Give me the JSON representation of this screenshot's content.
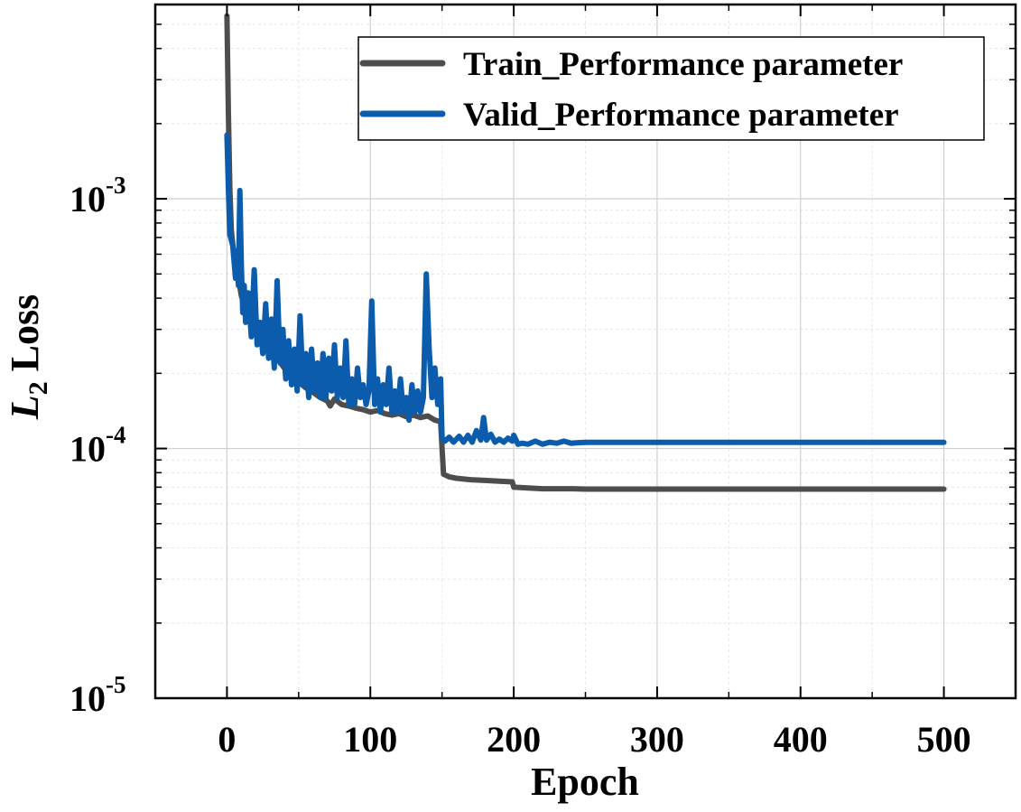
{
  "chart_data": {
    "type": "line",
    "xlabel": "Epoch",
    "ylabel_main": "L",
    "ylabel_sub": "2",
    "ylabel_rest": " Loss",
    "xlim": [
      -50,
      550
    ],
    "ylim": [
      1e-05,
      0.006
    ],
    "yscale": "log",
    "grid": true,
    "legend_position": "top-right",
    "x_ticks": [
      0,
      100,
      200,
      300,
      400,
      500
    ],
    "x_tick_labels": [
      "0",
      "100",
      "200",
      "300",
      "400",
      "500"
    ],
    "y_ticks": [
      {
        "value": 0.001,
        "base": "10",
        "exp": "-3"
      },
      {
        "value": 0.0001,
        "base": "10",
        "exp": "-4"
      },
      {
        "value": 1e-05,
        "base": "10",
        "exp": "-5"
      }
    ],
    "series": [
      {
        "name": "Train_Performance parameter",
        "color": "#4d4d4d",
        "points": [
          [
            0,
            0.0054
          ],
          [
            1,
            0.0022
          ],
          [
            2,
            0.0011
          ],
          [
            3,
            0.00075
          ],
          [
            5,
            0.00058
          ],
          [
            8,
            0.00048
          ],
          [
            10,
            0.00041
          ],
          [
            15,
            0.00034
          ],
          [
            20,
            0.0003
          ],
          [
            25,
            0.00027
          ],
          [
            30,
            0.00025
          ],
          [
            35,
            0.00023
          ],
          [
            40,
            0.00021
          ],
          [
            45,
            0.000195
          ],
          [
            50,
            0.000185
          ],
          [
            55,
            0.000175
          ],
          [
            60,
            0.000168
          ],
          [
            65,
            0.00016
          ],
          [
            70,
            0.000155
          ],
          [
            72,
            0.000148
          ],
          [
            75,
            0.000158
          ],
          [
            80,
            0.00015
          ],
          [
            85,
            0.000148
          ],
          [
            90,
            0.000145
          ],
          [
            95,
            0.000143
          ],
          [
            100,
            0.00014
          ],
          [
            105,
            0.000142
          ],
          [
            110,
            0.000138
          ],
          [
            115,
            0.000136
          ],
          [
            120,
            0.000138
          ],
          [
            125,
            0.000134
          ],
          [
            130,
            0.000136
          ],
          [
            135,
            0.000133
          ],
          [
            140,
            0.000135
          ],
          [
            145,
            0.00013
          ],
          [
            149,
            0.000128
          ],
          [
            150,
            0.0001
          ],
          [
            151,
            7.9e-05
          ],
          [
            155,
            7.7e-05
          ],
          [
            160,
            7.6e-05
          ],
          [
            170,
            7.5e-05
          ],
          [
            180,
            7.45e-05
          ],
          [
            190,
            7.4e-05
          ],
          [
            199,
            7.35e-05
          ],
          [
            200,
            7e-05
          ],
          [
            210,
            6.95e-05
          ],
          [
            220,
            6.9e-05
          ],
          [
            240,
            6.9e-05
          ],
          [
            250,
            6.88e-05
          ],
          [
            300,
            6.88e-05
          ],
          [
            400,
            6.88e-05
          ],
          [
            500,
            6.88e-05
          ]
        ]
      },
      {
        "name": "Valid_Performance parameter",
        "color": "#0b5cad",
        "points": [
          [
            0,
            0.0018
          ],
          [
            1,
            0.0011
          ],
          [
            2,
            0.00072
          ],
          [
            4,
            0.00065
          ],
          [
            6,
            0.00048
          ],
          [
            7,
            0.00062
          ],
          [
            8,
            0.00045
          ],
          [
            9,
            0.00108
          ],
          [
            10,
            0.00055
          ],
          [
            11,
            0.00035
          ],
          [
            12,
            0.00045
          ],
          [
            13,
            0.00032
          ],
          [
            15,
            0.00042
          ],
          [
            17,
            0.00028
          ],
          [
            19,
            0.00052
          ],
          [
            21,
            0.00026
          ],
          [
            23,
            0.00032
          ],
          [
            25,
            0.00024
          ],
          [
            27,
            0.00038
          ],
          [
            29,
            0.00023
          ],
          [
            31,
            0.00033
          ],
          [
            33,
            0.00021
          ],
          [
            35,
            0.00047
          ],
          [
            37,
            0.00022
          ],
          [
            39,
            0.0003
          ],
          [
            41,
            0.00019
          ],
          [
            43,
            0.00027
          ],
          [
            45,
            0.00018
          ],
          [
            47,
            0.00025
          ],
          [
            49,
            0.00017
          ],
          [
            51,
            0.00034
          ],
          [
            53,
            0.00018
          ],
          [
            55,
            0.00024
          ],
          [
            57,
            0.00016
          ],
          [
            59,
            0.00025
          ],
          [
            61,
            0.00017
          ],
          [
            63,
            0.00022
          ],
          [
            65,
            0.00016
          ],
          [
            67,
            0.00024
          ],
          [
            69,
            0.00016
          ],
          [
            71,
            0.00023
          ],
          [
            73,
            0.00017
          ],
          [
            75,
            0.00026
          ],
          [
            77,
            0.00016
          ],
          [
            79,
            0.00021
          ],
          [
            81,
            0.00016
          ],
          [
            83,
            0.00027
          ],
          [
            85,
            0.00015
          ],
          [
            87,
            0.00019
          ],
          [
            89,
            0.00015
          ],
          [
            91,
            0.00021
          ],
          [
            93,
            0.00016
          ],
          [
            95,
            0.00018
          ],
          [
            97,
            0.00015
          ],
          [
            99,
            0.00017
          ],
          [
            101,
            0.00039
          ],
          [
            103,
            0.00015
          ],
          [
            105,
            0.00019
          ],
          [
            107,
            0.00014
          ],
          [
            109,
            0.00018
          ],
          [
            111,
            0.00015
          ],
          [
            113,
            0.00021
          ],
          [
            115,
            0.00014
          ],
          [
            117,
            0.00017
          ],
          [
            119,
            0.00014
          ],
          [
            121,
            0.00019
          ],
          [
            123,
            0.00014
          ],
          [
            125,
            0.00016
          ],
          [
            127,
            0.00013
          ],
          [
            129,
            0.00018
          ],
          [
            131,
            0.00014
          ],
          [
            133,
            0.00017
          ],
          [
            135,
            0.00014
          ],
          [
            137,
            0.00016
          ],
          [
            139,
            0.0005
          ],
          [
            141,
            0.00025
          ],
          [
            143,
            0.00016
          ],
          [
            145,
            0.00021
          ],
          [
            147,
            0.00015
          ],
          [
            149,
            0.00019
          ],
          [
            150,
            0.00011
          ],
          [
            152,
            0.000107
          ],
          [
            155,
            0.000111
          ],
          [
            158,
            0.000106
          ],
          [
            162,
            0.000112
          ],
          [
            165,
            0.000106
          ],
          [
            168,
            0.000113
          ],
          [
            171,
            0.000106
          ],
          [
            174,
            0.000118
          ],
          [
            177,
            0.000108
          ],
          [
            179,
            0.000133
          ],
          [
            181,
            0.000108
          ],
          [
            184,
            0.000114
          ],
          [
            187,
            0.000106
          ],
          [
            190,
            0.000109
          ],
          [
            193,
            0.000106
          ],
          [
            196,
            0.00011
          ],
          [
            199,
            0.000107
          ],
          [
            200,
            0.000113
          ],
          [
            203,
            0.000104
          ],
          [
            206,
            0.000105
          ],
          [
            210,
            0.000104
          ],
          [
            215,
            0.000107
          ],
          [
            220,
            0.000104
          ],
          [
            225,
            0.000106
          ],
          [
            230,
            0.000105
          ],
          [
            235,
            0.000107
          ],
          [
            240,
            0.000105
          ],
          [
            245,
            0.0001055
          ],
          [
            250,
            0.0001058
          ],
          [
            300,
            0.0001058
          ],
          [
            400,
            0.0001058
          ],
          [
            500,
            0.0001058
          ]
        ]
      }
    ]
  }
}
